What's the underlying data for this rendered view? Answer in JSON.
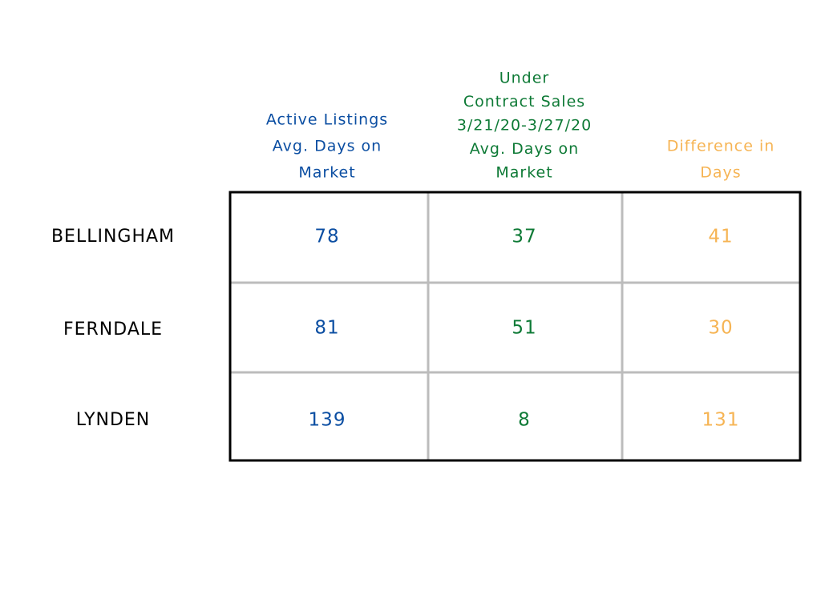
{
  "table": {
    "columns": [
      {
        "lines": [
          "Active Listings",
          "Avg. Days on",
          "Market"
        ],
        "color": "#0b4ea2"
      },
      {
        "lines": [
          "Under",
          "Contract Sales",
          "3/21/20-3/27/20",
          "Avg. Days on",
          "Market"
        ],
        "color": "#0e7a36"
      },
      {
        "lines": [
          "Difference in",
          "Days"
        ],
        "color": "#f6b454"
      }
    ],
    "rows": [
      {
        "label": "BELLINGHAM",
        "values": [
          78,
          37,
          41
        ]
      },
      {
        "label": "FERNDALE",
        "values": [
          81,
          51,
          30
        ]
      },
      {
        "label": "LYNDEN",
        "values": [
          139,
          8,
          131
        ]
      }
    ]
  }
}
